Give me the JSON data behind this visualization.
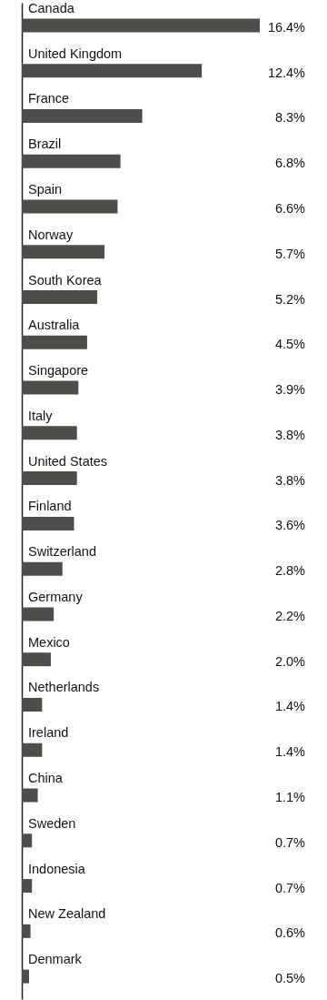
{
  "chart_data": {
    "type": "bar",
    "orientation": "horizontal",
    "categories": [
      "Canada",
      "United Kingdom",
      "France",
      "Brazil",
      "Spain",
      "Norway",
      "South Korea",
      "Australia",
      "Singapore",
      "Italy",
      "United States",
      "Finland",
      "Switzerland",
      "Germany",
      "Mexico",
      "Netherlands",
      "Ireland",
      "China",
      "Sweden",
      "Indonesia",
      "New Zealand",
      "Denmark"
    ],
    "values": [
      16.4,
      12.4,
      8.3,
      6.8,
      6.6,
      5.7,
      5.2,
      4.5,
      3.9,
      3.8,
      3.8,
      3.6,
      2.8,
      2.2,
      2.0,
      1.4,
      1.4,
      1.1,
      0.7,
      0.7,
      0.6,
      0.5
    ],
    "value_labels": [
      "16.4%",
      "12.4%",
      "8.3%",
      "6.8%",
      "6.6%",
      "5.7%",
      "5.2%",
      "4.5%",
      "3.9%",
      "3.8%",
      "3.8%",
      "3.6%",
      "2.8%",
      "2.2%",
      "2.0%",
      "1.4%",
      "1.4%",
      "1.1%",
      "0.7%",
      "0.7%",
      "0.6%",
      "0.5%"
    ],
    "color": "#4d4d4a"
  }
}
